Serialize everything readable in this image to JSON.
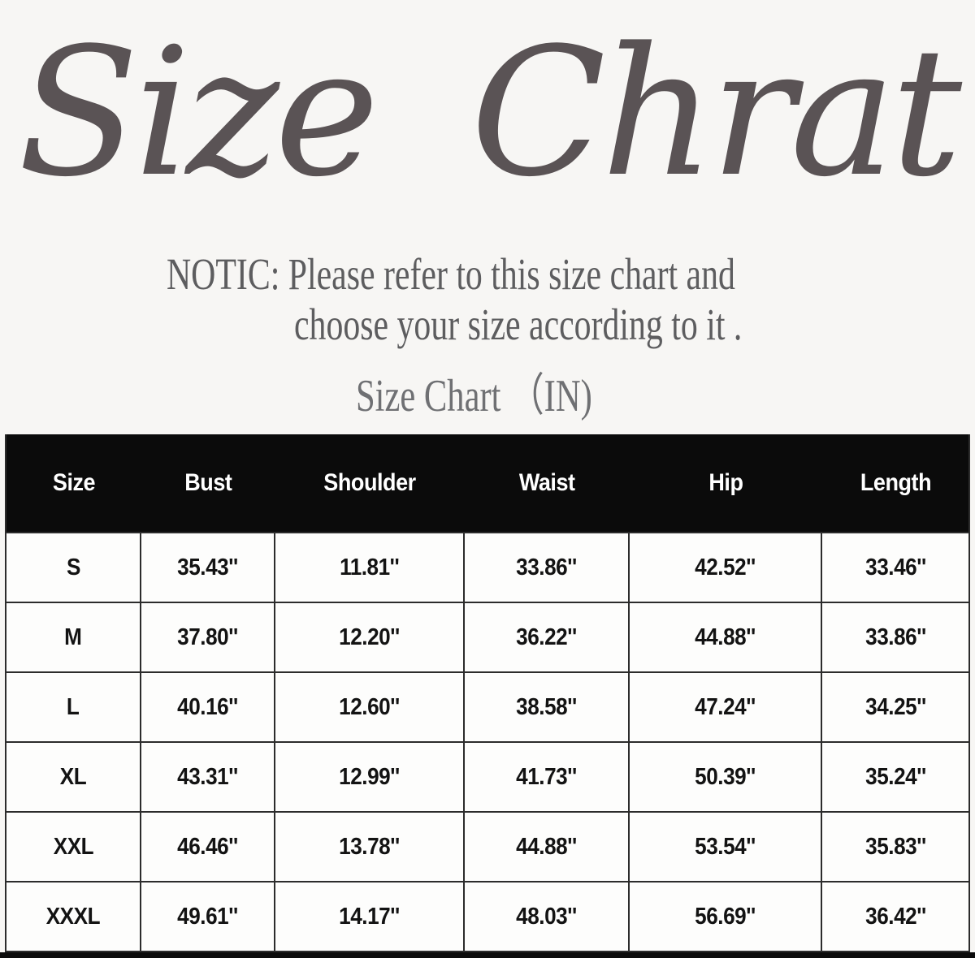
{
  "page": {
    "title_script": "Size Chrat",
    "notice_line1": "NOTIC: Please refer to this size chart and",
    "notice_line2": "choose your size according to it .",
    "notice_line3": "Size Chart （IN)"
  },
  "colors": {
    "background": "#f7f6f4",
    "title_text": "#5a5355",
    "notice_text": "#5d5d5f",
    "subtitle_text": "#6f7073",
    "table_header_bg": "#0b0b0b",
    "table_header_text": "#ffffff",
    "table_border": "#2c2c2c",
    "cell_bg": "#fdfdfc",
    "cell_text": "#131313"
  },
  "table": {
    "unit": "IN",
    "headers": [
      "Size",
      "Bust",
      "Shoulder",
      "Waist",
      "Hip",
      "Length"
    ],
    "rows": [
      [
        "S",
        "35.43''",
        "11.81''",
        "33.86''",
        "42.52''",
        "33.46''"
      ],
      [
        "M",
        "37.80''",
        "12.20''",
        "36.22''",
        "44.88''",
        "33.86''"
      ],
      [
        "L",
        "40.16''",
        "12.60''",
        "38.58''",
        "47.24''",
        "34.25''"
      ],
      [
        "XL",
        "43.31''",
        "12.99''",
        "41.73''",
        "50.39''",
        "35.24''"
      ],
      [
        "XXL",
        "46.46''",
        "13.78''",
        "44.88''",
        "53.54''",
        "35.83''"
      ],
      [
        "XXXL",
        "49.61''",
        "14.17''",
        "48.03''",
        "56.69''",
        "36.42''"
      ]
    ]
  }
}
